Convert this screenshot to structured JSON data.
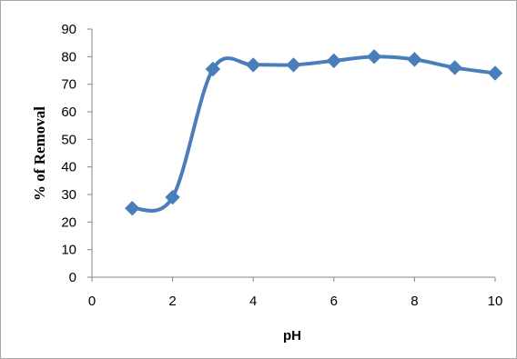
{
  "chart_data": {
    "type": "line",
    "title": "",
    "xlabel": "pH",
    "ylabel": "% of Removal",
    "xlim": [
      0,
      10
    ],
    "ylim": [
      0,
      90
    ],
    "x_ticks": [
      0,
      2,
      4,
      6,
      8,
      10
    ],
    "y_ticks": [
      0,
      10,
      20,
      30,
      40,
      50,
      60,
      70,
      80,
      90
    ],
    "grid": false,
    "legend": "none",
    "smooth": true,
    "line_color": "#4a7ebb",
    "marker": "diamond",
    "series": [
      {
        "x": [
          1,
          2,
          3,
          4,
          5,
          6,
          7,
          8,
          9,
          10
        ],
        "values": [
          25,
          29,
          75.5,
          77,
          77,
          78.5,
          80,
          79,
          76,
          74
        ]
      }
    ]
  }
}
